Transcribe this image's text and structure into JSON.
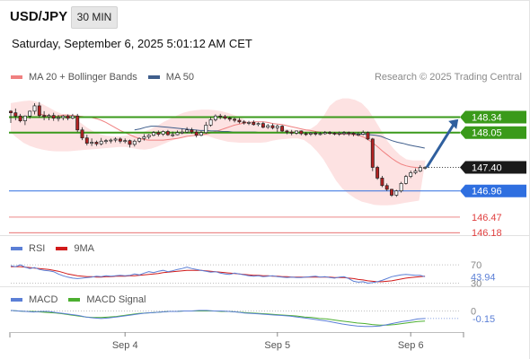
{
  "header": {
    "symbol": "USD/JPY",
    "timeframe": "30 MIN",
    "datetime": "Saturday, September 6, 2025 5:01:12 AM CET",
    "credit": "Research © 2025 Trading Central"
  },
  "colors": {
    "bollinger_fill": "#fde2e2",
    "ma20": "#f08080",
    "ma50": "#3f5e8c",
    "bull_candle": "#ffffff",
    "bear_candle": "#b22222",
    "resistance": "#3a9a1a",
    "resistance_label_bg": "#3a9a1a",
    "pivot_line": "#2f6fe0",
    "support": "#e04040",
    "arrow": "#2f5f9e",
    "rsi": "#5b7fd6",
    "rsi_ma": "#d11a1a",
    "macd": "#5b7fd6",
    "macd_signal": "#4caf30"
  },
  "chart_data": [
    {
      "type": "candlestick",
      "title": "USD/JPY",
      "legend": [
        {
          "label": "MA 20 + Bollinger Bands",
          "color": "#f08080"
        },
        {
          "label": "MA 50",
          "color": "#3f5e8c"
        }
      ],
      "ylim": [
        146.1,
        148.75
      ],
      "x_ticks": [
        {
          "label": "Sep 4",
          "index": 24
        },
        {
          "label": "Sep 5",
          "index": 56
        },
        {
          "label": "Sep 6",
          "index": 84
        }
      ],
      "n_bars": 88,
      "candles_o": [
        148.45,
        148.42,
        148.36,
        148.27,
        148.36,
        148.45,
        148.55,
        148.37,
        148.35,
        148.37,
        148.32,
        148.33,
        148.36,
        148.32,
        148.36,
        148.1,
        147.95,
        147.85,
        147.87,
        147.84,
        147.89,
        147.9,
        147.91,
        147.93,
        147.89,
        147.9,
        147.83,
        147.89,
        147.94,
        147.97,
        148.0,
        148.05,
        148.02,
        148.07,
        148.01,
        148.01,
        148.05,
        148.06,
        148.1,
        148.06,
        148.0,
        148.05,
        148.19,
        148.29,
        148.36,
        148.35,
        148.32,
        148.3,
        148.28,
        148.25,
        148.23,
        148.24,
        148.2,
        148.22,
        148.15,
        148.18,
        148.14,
        148.17,
        148.08,
        148.06,
        148.04,
        148.08,
        148.03,
        148.02,
        148.04,
        148.03,
        148.03,
        148.05,
        148.04,
        148.03,
        148.04,
        148.05,
        148.04,
        148.02,
        148.02,
        148.05,
        147.93,
        147.4,
        147.2,
        147.06,
        146.99,
        146.88,
        146.96,
        147.1,
        147.23,
        147.3,
        147.33,
        147.4
      ],
      "candles_h": [
        148.47,
        148.5,
        148.4,
        148.37,
        148.46,
        148.6,
        148.62,
        148.45,
        148.4,
        148.42,
        148.38,
        148.38,
        148.39,
        148.4,
        148.4,
        148.15,
        148.01,
        147.94,
        147.9,
        147.95,
        147.93,
        147.94,
        147.96,
        147.96,
        147.94,
        147.92,
        147.92,
        147.96,
        148.02,
        148.02,
        148.08,
        148.09,
        148.09,
        148.1,
        148.07,
        148.09,
        148.12,
        148.15,
        148.14,
        148.1,
        148.08,
        148.25,
        148.34,
        148.39,
        148.4,
        148.38,
        148.35,
        148.33,
        148.32,
        148.28,
        148.27,
        148.28,
        148.24,
        148.25,
        148.21,
        148.22,
        148.2,
        148.19,
        148.1,
        148.1,
        148.09,
        148.09,
        148.06,
        148.06,
        148.07,
        148.06,
        148.08,
        148.08,
        148.06,
        148.07,
        148.08,
        148.07,
        148.06,
        148.06,
        148.09,
        148.07,
        147.95,
        147.43,
        147.24,
        147.1,
        147.0,
        146.98,
        147.13,
        147.26,
        147.34,
        147.38,
        147.44,
        147.42
      ],
      "candles_l": [
        148.23,
        148.28,
        148.24,
        148.19,
        148.31,
        148.39,
        148.33,
        148.28,
        148.28,
        148.27,
        148.26,
        148.28,
        148.28,
        148.3,
        148.06,
        147.91,
        147.81,
        147.8,
        147.8,
        147.81,
        147.84,
        147.85,
        147.87,
        147.85,
        147.85,
        147.77,
        147.79,
        147.86,
        147.9,
        147.93,
        147.98,
        147.98,
        147.99,
        147.99,
        147.97,
        148.0,
        148.02,
        148.04,
        148.03,
        147.96,
        147.98,
        148.03,
        148.16,
        148.26,
        148.3,
        148.29,
        148.26,
        148.24,
        148.22,
        148.2,
        148.19,
        148.18,
        148.17,
        148.13,
        148.12,
        148.11,
        148.06,
        148.06,
        148.02,
        148.0,
        148.01,
        148.0,
        147.99,
        147.99,
        147.99,
        148.0,
        148.01,
        148.01,
        148.0,
        147.99,
        148.0,
        147.99,
        147.98,
        147.98,
        148.0,
        147.91,
        147.33,
        147.17,
        147.03,
        146.96,
        146.85,
        146.85,
        146.93,
        147.08,
        147.2,
        147.27,
        147.31,
        147.36
      ],
      "candles_c": [
        148.42,
        148.36,
        148.27,
        148.36,
        148.45,
        148.55,
        148.37,
        148.35,
        148.37,
        148.32,
        148.33,
        148.36,
        148.32,
        148.36,
        148.1,
        147.95,
        147.85,
        147.87,
        147.84,
        147.89,
        147.9,
        147.91,
        147.93,
        147.89,
        147.9,
        147.83,
        147.89,
        147.94,
        147.97,
        148.0,
        148.05,
        148.02,
        148.07,
        148.01,
        148.01,
        148.05,
        148.06,
        148.1,
        148.06,
        148.0,
        148.05,
        148.19,
        148.29,
        148.36,
        148.35,
        148.32,
        148.3,
        148.28,
        148.25,
        148.23,
        148.24,
        148.2,
        148.22,
        148.15,
        148.18,
        148.14,
        148.17,
        148.08,
        148.06,
        148.04,
        148.08,
        148.03,
        148.02,
        148.04,
        148.03,
        148.03,
        148.05,
        148.04,
        148.03,
        148.04,
        148.05,
        148.04,
        148.02,
        148.02,
        148.05,
        147.93,
        147.4,
        147.2,
        147.06,
        146.99,
        146.88,
        146.96,
        147.1,
        147.23,
        147.3,
        147.33,
        147.4,
        147.4
      ],
      "ma20": [
        148.4,
        148.38,
        148.36,
        148.35,
        148.36,
        148.38,
        148.38,
        148.37,
        148.36,
        148.35,
        148.34,
        148.33,
        148.31,
        148.28,
        148.24,
        148.19,
        148.14,
        148.09,
        148.05,
        148.01,
        147.97,
        147.94,
        147.92,
        147.91,
        147.91,
        147.91,
        147.91,
        147.92,
        147.93,
        147.94,
        147.96,
        147.98,
        147.99,
        148.0,
        148.01,
        148.02,
        148.04,
        148.07,
        148.1,
        148.13,
        148.16,
        148.19,
        148.21,
        148.23,
        148.24,
        148.25,
        148.25,
        148.25,
        148.24,
        148.22,
        148.21,
        148.2,
        148.18,
        148.16,
        148.14,
        148.12,
        148.1,
        148.09,
        148.07,
        148.06,
        148.05,
        148.04,
        148.03,
        148.02,
        148.02,
        148.02,
        148.01,
        148.0,
        147.97,
        147.92,
        147.86,
        147.79,
        147.71,
        147.64,
        147.57,
        147.51,
        147.46,
        147.43,
        147.41,
        147.4,
        147.39
      ],
      "ma20_start": 6,
      "bb_upper": [
        148.6,
        148.62,
        148.64,
        148.65,
        148.63,
        148.58,
        148.52,
        148.45,
        148.4,
        148.36,
        148.31,
        148.23,
        148.14,
        148.07,
        148.02,
        147.99,
        147.98,
        147.98,
        147.99,
        148.01,
        148.04,
        148.07,
        148.12,
        148.18,
        148.25,
        148.31,
        148.37,
        148.42,
        148.45,
        148.47,
        148.48,
        148.48,
        148.47,
        148.45,
        148.42,
        148.38,
        148.33,
        148.27,
        148.21,
        148.17,
        148.15,
        148.14,
        148.13,
        148.12,
        148.11,
        148.1,
        148.1,
        148.12,
        148.2,
        148.35,
        148.55,
        148.65,
        148.69,
        148.69,
        148.66,
        148.6,
        148.48,
        148.3,
        148.1,
        147.9,
        147.75,
        147.63,
        147.55,
        147.53,
        147.53,
        147.53
      ],
      "bb_lower": [
        148.05,
        147.95,
        147.86,
        147.8,
        147.76,
        147.73,
        147.71,
        147.7,
        147.7,
        147.7,
        147.71,
        147.72,
        147.73,
        147.74,
        147.75,
        147.76,
        147.77,
        147.78,
        147.78,
        147.76,
        147.74,
        147.73,
        147.75,
        147.79,
        147.84,
        147.89,
        147.93,
        147.97,
        148.0,
        148.01,
        148.0,
        147.98,
        147.94,
        147.91,
        147.88,
        147.87,
        147.86,
        147.86,
        147.86,
        147.86,
        147.87,
        147.9,
        147.92,
        147.93,
        147.94,
        147.94,
        147.91,
        147.82,
        147.7,
        147.55,
        147.35,
        147.15,
        147.0,
        146.9,
        146.82,
        146.76,
        146.73,
        146.7,
        146.69,
        146.69,
        146.7,
        146.72,
        146.74,
        146.76,
        146.78
      ],
      "bb_start": 0,
      "bb_step": 1.34,
      "ma50": [
        148.1,
        148.12,
        148.15,
        148.17,
        148.17,
        148.16,
        148.15,
        148.14,
        148.13,
        148.12,
        148.11,
        148.1,
        148.09,
        148.09,
        148.08,
        148.08,
        148.07,
        148.07,
        148.06,
        148.06,
        148.06,
        148.06,
        148.06,
        148.05,
        148.05,
        148.05,
        148.05,
        148.05,
        148.05,
        148.05,
        148.05,
        148.05,
        148.05,
        148.05,
        148.04,
        148.04,
        148.04,
        148.04,
        148.03,
        148.03,
        148.03,
        148.02,
        148.02,
        148.01,
        148.0,
        147.98,
        147.94,
        147.9,
        147.87,
        147.85,
        147.82,
        147.8,
        147.78,
        147.76
      ],
      "ma50_start": 26,
      "ma50_step": 1.15,
      "levels": [
        {
          "value": 148.34,
          "label": "148.34",
          "kind": "resistance",
          "style": "filled"
        },
        {
          "value": 148.05,
          "label": "148.05",
          "kind": "resistance",
          "style": "filled"
        },
        {
          "value": 147.4,
          "label": "147.40",
          "kind": "last",
          "style": "dark"
        },
        {
          "value": 146.96,
          "label": "146.96",
          "kind": "pivot",
          "style": "filled"
        },
        {
          "value": 146.47,
          "label": "146.47",
          "kind": "support",
          "style": "text"
        },
        {
          "value": 146.18,
          "label": "146.18",
          "kind": "support",
          "style": "text"
        }
      ],
      "forecast_arrow": {
        "from_index": 87,
        "from_value": 147.4,
        "to_index": 94,
        "to_value": 148.3
      }
    },
    {
      "type": "line",
      "title": "RSI",
      "legend": [
        {
          "label": "RSI",
          "color": "#5b7fd6"
        },
        {
          "label": "9MA",
          "color": "#d11a1a"
        }
      ],
      "ylim": [
        25,
        80
      ],
      "ticks": [
        {
          "value": 70,
          "label": "70"
        },
        {
          "value": 30,
          "label": "30"
        }
      ],
      "current": {
        "value": 43.94,
        "label": "43.94"
      },
      "rsi": [
        68,
        66,
        70,
        65,
        62,
        64,
        60,
        58,
        57,
        55,
        50,
        46,
        43,
        41,
        40,
        41,
        42,
        43,
        45,
        44,
        46,
        45,
        46,
        47,
        46,
        47,
        50,
        48,
        52,
        55,
        53,
        56,
        58,
        55,
        57,
        60,
        62,
        65,
        62,
        60,
        58,
        56,
        54,
        55,
        52,
        50,
        49,
        52,
        50,
        48,
        46,
        45,
        46,
        44,
        45,
        46,
        44,
        43,
        42,
        43,
        42,
        42,
        43,
        44,
        45,
        43,
        44,
        42,
        41,
        43,
        44,
        40,
        34,
        32,
        33,
        30,
        31,
        33,
        36,
        40,
        44,
        46,
        48,
        49,
        48,
        47,
        47,
        44
      ],
      "ma": [
        66,
        66,
        66,
        65,
        64,
        63,
        62,
        61,
        60,
        58,
        56,
        53,
        50,
        48,
        46,
        45,
        44,
        44,
        43,
        43,
        44,
        44,
        45,
        45,
        45,
        46,
        46,
        47,
        48,
        49,
        50,
        51,
        53,
        54,
        55,
        56,
        57,
        58,
        58,
        58,
        58,
        57,
        56,
        55,
        54,
        53,
        52,
        51,
        50,
        49,
        48,
        47,
        47,
        46,
        46,
        45,
        45,
        44,
        44,
        43,
        43,
        43,
        43,
        43,
        43,
        43,
        43,
        43,
        42,
        42,
        42,
        41,
        40,
        38,
        37,
        35,
        34,
        33,
        33,
        34,
        35,
        37,
        39,
        41,
        42,
        43,
        44,
        45
      ]
    },
    {
      "type": "line",
      "title": "MACD",
      "legend": [
        {
          "label": "MACD",
          "color": "#5b7fd6"
        },
        {
          "label": "MACD Signal",
          "color": "#4caf30"
        }
      ],
      "ylim": [
        -0.42,
        0.08
      ],
      "ticks": [
        {
          "value": 0,
          "label": "0"
        }
      ],
      "current": {
        "value": -0.15,
        "label": "-0.15"
      },
      "macd": [
        0.01,
        0.0,
        -0.01,
        -0.02,
        -0.01,
        -0.01,
        -0.03,
        -0.05,
        -0.07,
        -0.09,
        -0.12,
        -0.14,
        -0.15,
        -0.14,
        -0.12,
        -0.1,
        -0.08,
        -0.06,
        -0.04,
        -0.03,
        -0.02,
        -0.01,
        -0.01,
        0.0,
        0.0,
        0.01,
        0.01,
        0.0,
        0.0,
        -0.01,
        -0.02,
        -0.04,
        -0.05,
        -0.06,
        -0.07,
        -0.08,
        -0.09,
        -0.1,
        -0.12,
        -0.14,
        -0.16,
        -0.18,
        -0.2,
        -0.23,
        -0.26,
        -0.28,
        -0.3,
        -0.31,
        -0.31,
        -0.3,
        -0.27,
        -0.24,
        -0.21,
        -0.19,
        -0.16,
        -0.15
      ],
      "signal": [
        0.01,
        0.0,
        -0.01,
        -0.01,
        -0.02,
        -0.03,
        -0.04,
        -0.06,
        -0.08,
        -0.1,
        -0.12,
        -0.13,
        -0.13,
        -0.12,
        -0.11,
        -0.09,
        -0.07,
        -0.05,
        -0.04,
        -0.03,
        -0.02,
        -0.01,
        -0.01,
        0.0,
        0.0,
        0.0,
        0.0,
        0.0,
        -0.01,
        -0.01,
        -0.02,
        -0.03,
        -0.04,
        -0.05,
        -0.06,
        -0.07,
        -0.08,
        -0.09,
        -0.1,
        -0.12,
        -0.13,
        -0.15,
        -0.16,
        -0.18,
        -0.2,
        -0.22,
        -0.24,
        -0.25,
        -0.27,
        -0.28,
        -0.28,
        -0.27,
        -0.25,
        -0.23,
        -0.21,
        -0.2
      ]
    }
  ]
}
